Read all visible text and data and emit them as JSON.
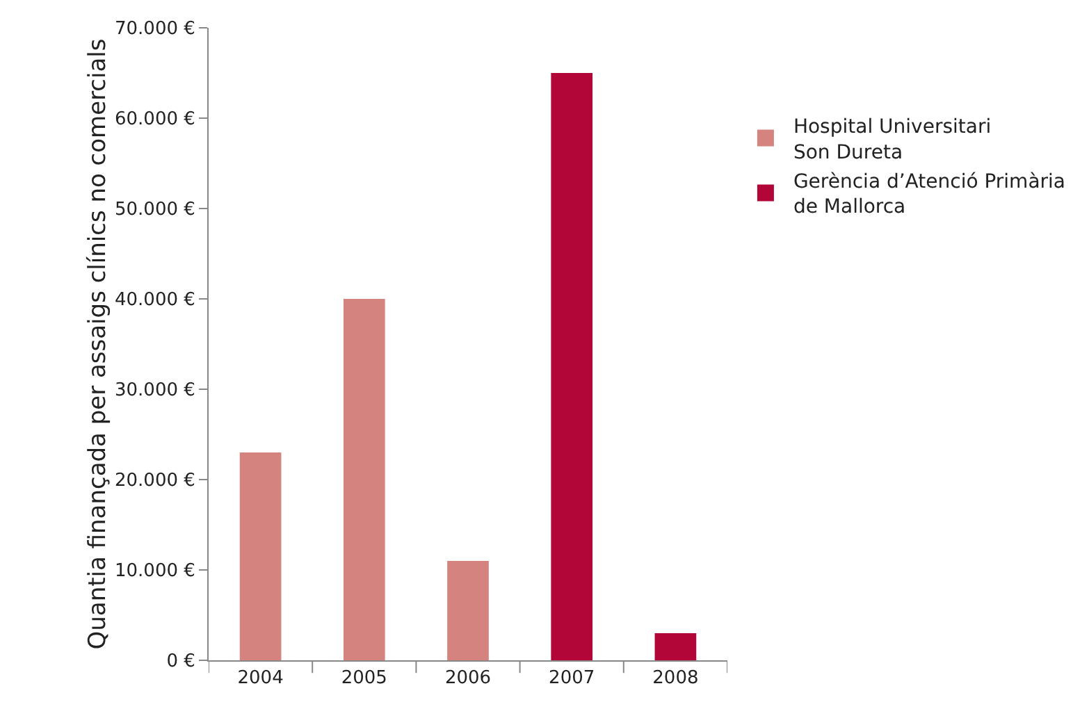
{
  "chart_data": {
    "type": "bar",
    "ylabel": "Quantia finançada per assaigs clínics no comercials",
    "categories": [
      "2004",
      "2005",
      "2006",
      "2007",
      "2008"
    ],
    "series": [
      {
        "name": "Hospital Universitari\nSon Dureta",
        "color": "#d5837f",
        "values": [
          23000,
          40000,
          11000,
          null,
          null
        ]
      },
      {
        "name": "Gerència d’Atenció Primària\nde Mallorca",
        "color": "#b20638",
        "values": [
          null,
          null,
          null,
          65000,
          3000
        ]
      }
    ],
    "ylim": [
      0,
      70000
    ],
    "yticks": [
      {
        "value": 0,
        "label": "0 €"
      },
      {
        "value": 10000,
        "label": "10.000 €"
      },
      {
        "value": 20000,
        "label": "20.000 €"
      },
      {
        "value": 30000,
        "label": "30.000 €"
      },
      {
        "value": 40000,
        "label": "40.000 €"
      },
      {
        "value": 50000,
        "label": "50.000 €"
      },
      {
        "value": 60000,
        "label": "60.000 €"
      },
      {
        "value": 70000,
        "label": "70.000 €"
      }
    ],
    "grid": false,
    "legend": "top right"
  }
}
